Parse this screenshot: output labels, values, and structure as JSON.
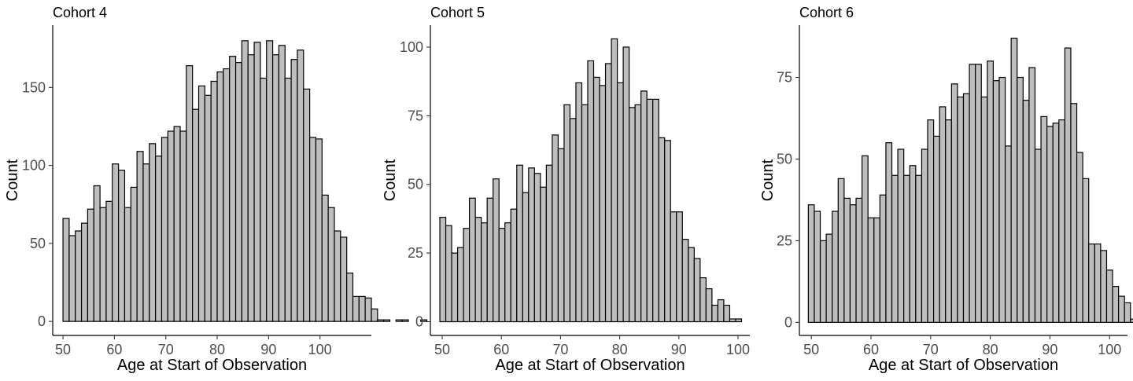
{
  "chart_data": [
    {
      "type": "bar",
      "title": "Cohort 4",
      "xlabel": "Age at Start of Observation",
      "ylabel": "Count",
      "xlim": [
        48,
        110
      ],
      "ylim": [
        -9,
        190
      ],
      "xticks": [
        50,
        60,
        70,
        80,
        90,
        100
      ],
      "yticks": [
        0,
        50,
        100,
        150
      ],
      "xtick_labels": [
        "50",
        "60",
        "70",
        "80",
        "90",
        "100"
      ],
      "ytick_labels": [
        "0",
        "50",
        "100",
        "150"
      ],
      "bin_start": 50,
      "bin_width": 1.2,
      "values": [
        66,
        55,
        58,
        63,
        72,
        87,
        73,
        77,
        101,
        97,
        73,
        86,
        109,
        101,
        114,
        106,
        118,
        122,
        125,
        122,
        164,
        136,
        151,
        145,
        154,
        160,
        162,
        170,
        166,
        180,
        171,
        179,
        156,
        180,
        171,
        177,
        156,
        168,
        174,
        149,
        118,
        117,
        81,
        73,
        58,
        54,
        31,
        16,
        16,
        15,
        8,
        1,
        1,
        0,
        1,
        1,
        0,
        0,
        1
      ],
      "grid": false
    },
    {
      "type": "bar",
      "title": "Cohort 5",
      "xlabel": "Age at Start of Observation",
      "ylabel": "Count",
      "xlim": [
        48,
        102
      ],
      "ylim": [
        -5,
        108
      ],
      "xticks": [
        50,
        60,
        70,
        80,
        90,
        100
      ],
      "yticks": [
        0,
        25,
        50,
        75,
        100
      ],
      "xtick_labels": [
        "50",
        "60",
        "70",
        "80",
        "90",
        "100"
      ],
      "ytick_labels": [
        "0",
        "25",
        "50",
        "75",
        "100"
      ],
      "bin_start": 49.6,
      "bin_width": 1.0,
      "values": [
        38,
        35,
        25,
        27,
        34,
        45,
        38,
        36,
        45,
        52,
        34,
        36,
        41,
        57,
        47,
        56,
        54,
        49,
        57,
        68,
        63,
        79,
        74,
        87,
        79,
        95,
        89,
        86,
        94,
        103,
        87,
        100,
        78,
        79,
        84,
        81,
        81,
        67,
        66,
        40,
        40,
        30,
        27,
        23,
        16,
        12,
        6,
        8,
        6,
        1,
        1
      ],
      "grid": false
    },
    {
      "type": "bar",
      "title": "Cohort 6",
      "xlabel": "Age at Start of Observation",
      "ylabel": "Count",
      "xlim": [
        48,
        103
      ],
      "ylim": [
        -4,
        91
      ],
      "xticks": [
        50,
        60,
        70,
        80,
        90,
        100
      ],
      "yticks": [
        0,
        25,
        50,
        75
      ],
      "xtick_labels": [
        "50",
        "60",
        "70",
        "80",
        "90",
        "100"
      ],
      "ytick_labels": [
        "0",
        "25",
        "50",
        "75"
      ],
      "bin_start": 49.5,
      "bin_width": 1.0,
      "values": [
        36,
        34,
        25,
        27,
        34,
        44,
        38,
        36,
        38,
        51,
        32,
        32,
        39,
        55,
        45,
        53,
        45,
        48,
        45,
        53,
        62,
        57,
        66,
        62,
        73,
        69,
        70,
        79,
        79,
        69,
        80,
        74,
        75,
        54,
        87,
        75,
        68,
        78,
        53,
        63,
        60,
        61,
        62,
        84,
        67,
        52,
        44,
        24,
        24,
        22,
        16,
        11,
        8,
        6,
        1,
        1
      ],
      "grid": false
    }
  ]
}
